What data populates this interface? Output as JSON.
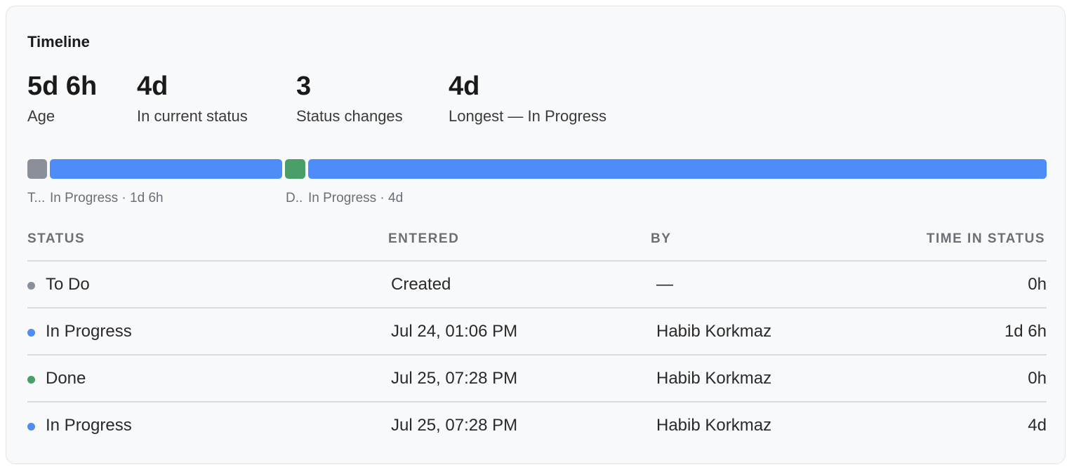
{
  "timeline": {
    "title": "Timeline",
    "stats": [
      {
        "value": "5d 6h",
        "label": "Age"
      },
      {
        "value": "4d",
        "label": "In current status"
      },
      {
        "value": "3",
        "label": "Status changes"
      },
      {
        "value": "4d",
        "label": "Longest — In Progress"
      }
    ],
    "bar_segments": [
      {
        "status": "To Do",
        "color": "#8a8f99"
      },
      {
        "status": "In Progress",
        "color": "#4e8cf7"
      },
      {
        "status": "Done",
        "color": "#4a9e68"
      },
      {
        "status": "In Progress",
        "color": "#4e8cf7"
      }
    ],
    "bar_labels": [
      "T...",
      "In Progress · 1d 6h",
      "D..",
      "In Progress · 4d"
    ],
    "table": {
      "headers": {
        "status": "STATUS",
        "entered": "ENTERED",
        "by": "BY",
        "time": "TIME IN STATUS"
      },
      "rows": [
        {
          "status": "To Do",
          "color": "#8a8f99",
          "entered": "Created",
          "by": "—",
          "time": "0h"
        },
        {
          "status": "In Progress",
          "color": "#4e8cf7",
          "entered": "Jul 24, 01:06 PM",
          "by": "Habib Korkmaz",
          "time": "1d 6h"
        },
        {
          "status": "Done",
          "color": "#4a9e68",
          "entered": "Jul 25, 07:28 PM",
          "by": "Habib Korkmaz",
          "time": "0h"
        },
        {
          "status": "In Progress",
          "color": "#4e8cf7",
          "entered": "Jul 25, 07:28 PM",
          "by": "Habib Korkmaz",
          "time": "4d"
        }
      ]
    }
  }
}
